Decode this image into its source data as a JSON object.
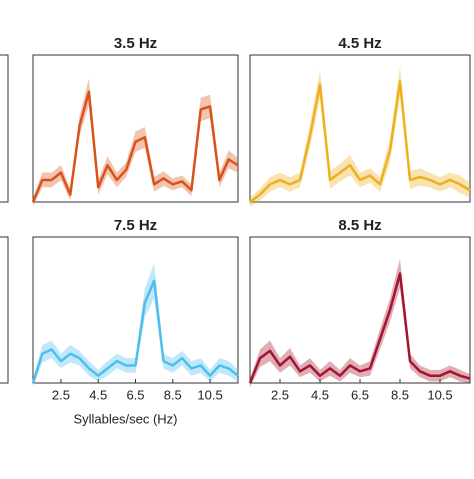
{
  "chart_data": [
    {
      "type": "line",
      "title": "3.5 Hz",
      "xlim": [
        1,
        12
      ],
      "ylim": [
        0,
        1
      ],
      "x": [
        1,
        1.5,
        2,
        2.5,
        3,
        3.5,
        4,
        4.5,
        5,
        5.5,
        6,
        6.5,
        7,
        7.5,
        8,
        8.5,
        9,
        9.5,
        10,
        10.5,
        11,
        11.5,
        12
      ],
      "series": [
        {
          "color": "#d95319",
          "values": [
            0,
            0.15,
            0.15,
            0.2,
            0.05,
            0.52,
            0.75,
            0.1,
            0.25,
            0.15,
            0.22,
            0.41,
            0.44,
            0.12,
            0.16,
            0.12,
            0.14,
            0.08,
            0.63,
            0.65,
            0.15,
            0.29,
            0.25
          ],
          "errors": [
            0.03,
            0.05,
            0.05,
            0.05,
            0.04,
            0.07,
            0.09,
            0.05,
            0.06,
            0.05,
            0.05,
            0.07,
            0.07,
            0.05,
            0.05,
            0.04,
            0.04,
            0.04,
            0.08,
            0.08,
            0.05,
            0.06,
            0.05
          ]
        }
      ]
    },
    {
      "type": "line",
      "title": "4.5 Hz",
      "xlim": [
        1,
        12
      ],
      "ylim": [
        0,
        1
      ],
      "x": [
        1,
        1.5,
        2,
        2.5,
        3,
        3.5,
        4,
        4.5,
        5,
        5.5,
        6,
        6.5,
        7,
        7.5,
        8,
        8.5,
        9,
        9.5,
        10,
        10.5,
        11,
        11.5,
        12
      ],
      "series": [
        {
          "color": "#edb120",
          "values": [
            0,
            0.05,
            0.12,
            0.15,
            0.12,
            0.15,
            0.45,
            0.8,
            0.15,
            0.2,
            0.25,
            0.15,
            0.18,
            0.12,
            0.35,
            0.82,
            0.15,
            0.17,
            0.15,
            0.12,
            0.15,
            0.12,
            0.08
          ],
          "errors": [
            0.03,
            0.04,
            0.05,
            0.05,
            0.05,
            0.05,
            0.08,
            0.1,
            0.06,
            0.06,
            0.07,
            0.05,
            0.05,
            0.05,
            0.08,
            0.1,
            0.06,
            0.06,
            0.05,
            0.05,
            0.05,
            0.06,
            0.05
          ]
        }
      ]
    },
    {
      "type": "line",
      "title": "7.5 Hz",
      "xlim": [
        1,
        12
      ],
      "ylim": [
        0,
        1
      ],
      "xticks": [
        2.5,
        4.5,
        6.5,
        8.5,
        10.5
      ],
      "xlabel": "Syllables/sec (Hz)",
      "x": [
        1,
        1.5,
        2,
        2.5,
        3,
        3.5,
        4,
        4.5,
        5,
        5.5,
        6,
        6.5,
        7,
        7.5,
        8,
        8.5,
        9,
        9.5,
        10,
        10.5,
        11,
        11.5,
        12
      ],
      "series": [
        {
          "color": "#4dbeee",
          "values": [
            0,
            0.2,
            0.23,
            0.15,
            0.2,
            0.17,
            0.1,
            0.05,
            0.1,
            0.15,
            0.12,
            0.12,
            0.55,
            0.7,
            0.15,
            0.12,
            0.17,
            0.1,
            0.12,
            0.05,
            0.12,
            0.1,
            0.05
          ],
          "errors": [
            0.03,
            0.06,
            0.06,
            0.05,
            0.06,
            0.05,
            0.05,
            0.04,
            0.05,
            0.05,
            0.05,
            0.05,
            0.1,
            0.12,
            0.05,
            0.05,
            0.05,
            0.05,
            0.05,
            0.04,
            0.05,
            0.05,
            0.04
          ]
        }
      ]
    },
    {
      "type": "line",
      "title": "8.5 Hz",
      "xlim": [
        1,
        12
      ],
      "ylim": [
        0,
        1
      ],
      "xticks": [
        2.5,
        4.5,
        6.5,
        8.5,
        10.5
      ],
      "x": [
        1,
        1.5,
        2,
        2.5,
        3,
        3.5,
        4,
        4.5,
        5,
        5.5,
        6,
        6.5,
        7,
        7.5,
        8,
        8.5,
        9,
        9.5,
        10,
        10.5,
        11,
        11.5,
        12
      ],
      "series": [
        {
          "color": "#a2142f",
          "values": [
            0,
            0.17,
            0.22,
            0.12,
            0.18,
            0.08,
            0.12,
            0.05,
            0.1,
            0.05,
            0.12,
            0.08,
            0.1,
            0.3,
            0.5,
            0.75,
            0.15,
            0.08,
            0.05,
            0.05,
            0.08,
            0.05,
            0.03
          ],
          "errors": [
            0.03,
            0.06,
            0.07,
            0.05,
            0.06,
            0.04,
            0.05,
            0.04,
            0.05,
            0.04,
            0.05,
            0.04,
            0.05,
            0.07,
            0.08,
            0.1,
            0.05,
            0.04,
            0.04,
            0.04,
            0.04,
            0.04,
            0.03
          ]
        }
      ]
    }
  ]
}
